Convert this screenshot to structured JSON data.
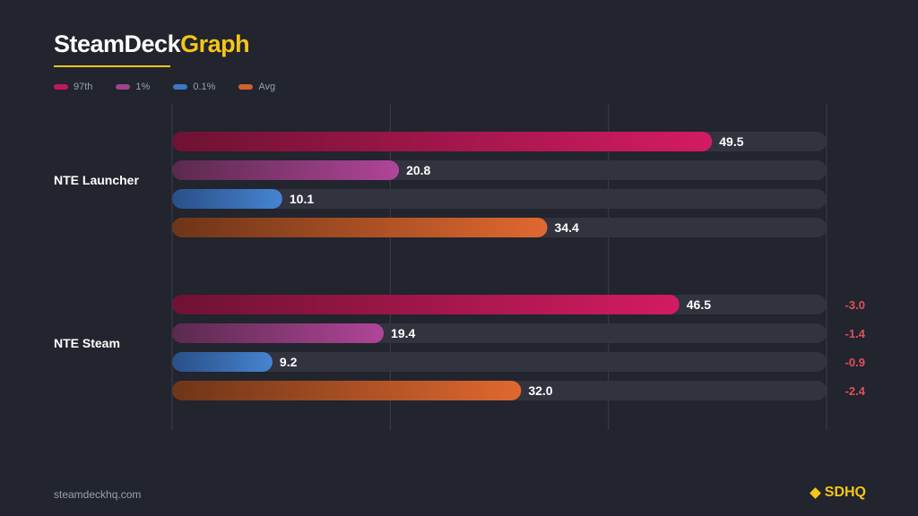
{
  "brand": {
    "part1": "SteamDeck",
    "part2": "Graph"
  },
  "legend": [
    {
      "label": "97th",
      "color": "#c2185b"
    },
    {
      "label": "1%",
      "color": "#a0428c"
    },
    {
      "label": "0.1%",
      "color": "#3a78c2"
    },
    {
      "label": "Avg",
      "color": "#d2602e"
    }
  ],
  "chart_data": {
    "type": "bar",
    "orientation": "horizontal",
    "xlim": [
      0,
      60
    ],
    "grid": true,
    "legend_position": "top-left",
    "groups": [
      {
        "name": "NTE Launcher",
        "values": [
          49.5,
          20.8,
          10.1,
          34.4
        ],
        "labels": [
          "49.5",
          "20.8",
          "10.1",
          "34.4"
        ],
        "deltas": []
      },
      {
        "name": "NTE Steam",
        "values": [
          46.5,
          19.4,
          9.2,
          32.0
        ],
        "labels": [
          "46.5",
          "19.4",
          "9.2",
          "32.0"
        ],
        "deltas": [
          "-3.0",
          "-1.4",
          "-0.9",
          "-2.4"
        ]
      }
    ],
    "series_colors": [
      {
        "from": "#6e1233",
        "to": "#d41b62"
      },
      {
        "from": "#5a2a4e",
        "to": "#b04598"
      },
      {
        "from": "#2a4f86",
        "to": "#4684d2"
      },
      {
        "from": "#6e3518",
        "to": "#e06830"
      }
    ],
    "track_color": "#31333e",
    "grid_color": "#3a3d4a"
  },
  "footer": {
    "url": "steamdeckhq.com",
    "logo": "SDHQ"
  }
}
